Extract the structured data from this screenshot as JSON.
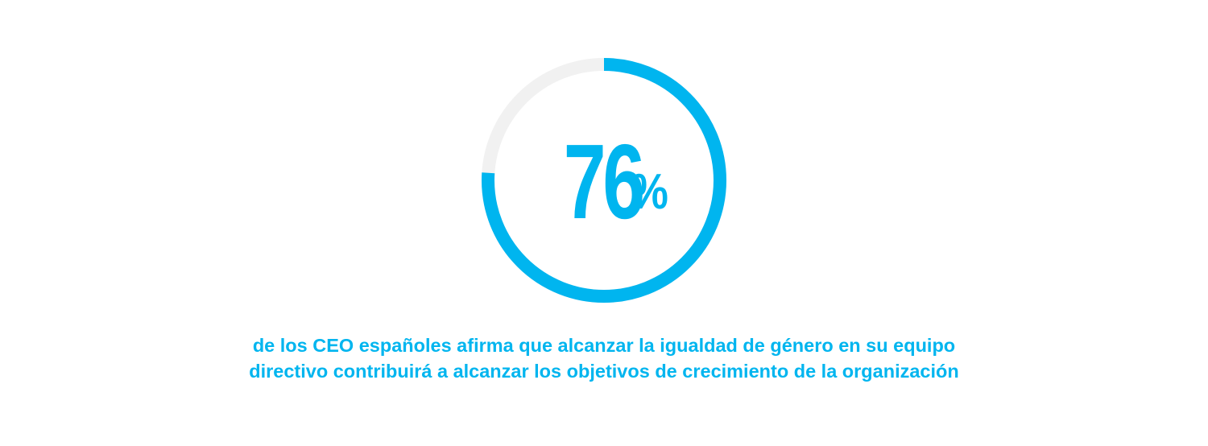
{
  "chart_data": {
    "type": "pie",
    "value": 76,
    "unit": "%",
    "max": 100,
    "track_color": "#f1f1f1",
    "fill_color": "#00b5ef",
    "caption_lines": [
      "de los CEO españoles afirma que alcanzar la igualdad de género en su equipo",
      "directivo contribuirá a alcanzar los objetivos de crecimiento de la organización"
    ]
  },
  "colors": {
    "accent": "#00b5ef",
    "track": "#f1f1f1",
    "background": "#ffffff"
  }
}
